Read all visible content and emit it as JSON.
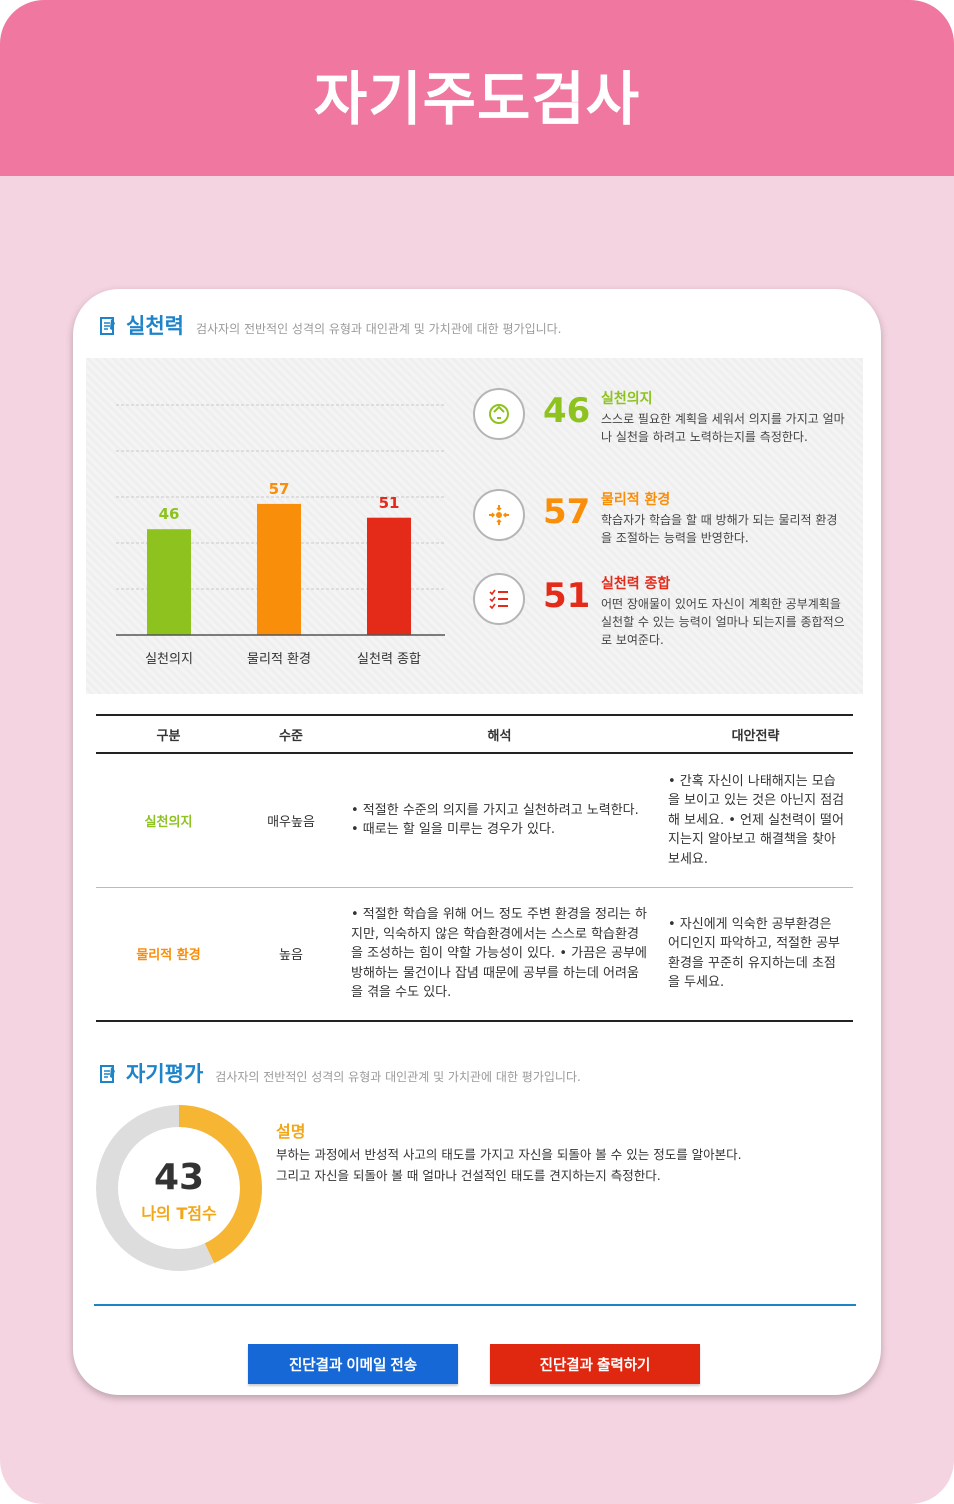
{
  "header": {
    "title": "자기주도검사"
  },
  "section1": {
    "title": "실천력",
    "desc": "검사자의 전반적인 성격의 유형과 대인관계 및 가치관에 대한 평가입니다."
  },
  "chart_data": {
    "type": "bar",
    "categories": [
      "실천의지",
      "물리적 환경",
      "실천력 종합"
    ],
    "values": [
      46,
      57,
      51
    ],
    "colors": [
      "#8dc21f",
      "#f88e09",
      "#e42b1a"
    ],
    "ylim": [
      0,
      100
    ],
    "grid": true
  },
  "stats": [
    {
      "value": "46",
      "name": "실천의지",
      "desc": "스스로 필요한 계획을 세워서 의지를 가지고 얼마나 실천을 하려고 노력하는지를 측정한다.",
      "color": "#8dc21f",
      "icon": "recycle-icon"
    },
    {
      "value": "57",
      "name": "물리적 환경",
      "desc": "학습자가 학습을 할 때 방해가 되는 물리적 환경을 조절하는 능력을 반영한다.",
      "color": "#f88e09",
      "icon": "converge-arrows-icon"
    },
    {
      "value": "51",
      "name": "실천력 종합",
      "desc": "어떤 장애물이 있어도 자신이 계획한 공부계획을 실천할 수 있는 능력이 얼마나 되는지를 종합적으로 보여준다.",
      "color": "#e42b1a",
      "icon": "checklist-icon"
    }
  ],
  "table": {
    "headers": [
      "구분",
      "수준",
      "해석",
      "대안전략"
    ],
    "rows": [
      {
        "category": "실천의지",
        "level": "매우높음",
        "interpretation": "• 적절한 수준의 의지를 가지고 실천하려고 노력한다. • 때로는 할 일을 미루는 경우가 있다.",
        "strategy": "• 간혹 자신이 나태해지는 모습을 보이고 있는 것은 아닌지 점검해 보세요. • 언제 실천력이 떨어지는지 알아보고 해결책을 찾아보세요."
      },
      {
        "category": "물리적 환경",
        "level": "높음",
        "interpretation": "• 적절한 학습을 위해 어느 정도 주변 환경을 정리는 하지만, 익숙하지 않은 학습환경에서는 스스로 학습환경을 조성하는 힘이 약할 가능성이 있다. • 가끔은 공부에 방해하는 물건이나 잡념 때문에 공부를 하는데 어려움을 겪을 수도 있다.",
        "strategy": "• 자신에게 익숙한 공부환경은 어디인지 파악하고, 적절한 공부환경을 꾸준히 유지하는데 초점을 두세요."
      }
    ]
  },
  "section2": {
    "title": "자기평가",
    "desc": "검사자의 전반적인 성격의 유형과 대인관계 및 가치관에 대한 평가입니다.",
    "score": "43",
    "score_fraction": 0.43,
    "score_label": "나의 T점수",
    "expl_title": "설명",
    "expl_line1": "부하는 과정에서 반성적 사고의 태도를 가지고 자신을 되돌아 볼 수 있는 정도를 알아본다.",
    "expl_line2": "그리고 자신을 되돌아 볼 때 얼마나 건설적인 태도를 견지하는지 측정한다."
  },
  "buttons": {
    "email": "진단결과 이메일 전송",
    "print": "진단결과 출력하기"
  }
}
